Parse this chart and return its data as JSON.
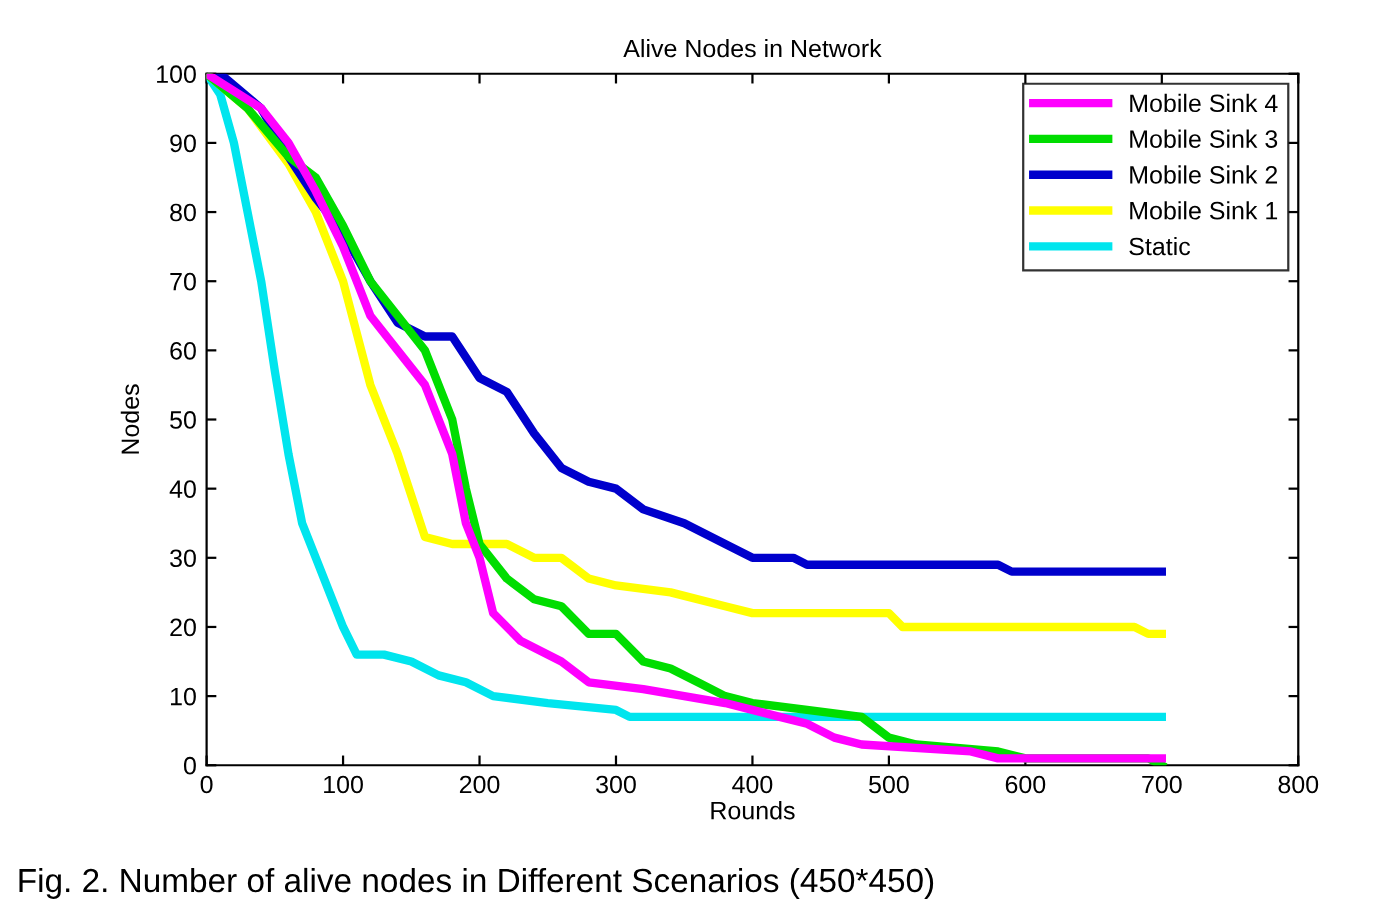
{
  "chart_data": {
    "type": "line",
    "title": "Alive Nodes in Network",
    "xlabel": "Rounds",
    "ylabel": "Nodes",
    "xlim": [
      0,
      800
    ],
    "xticks": [
      0,
      100,
      200,
      300,
      400,
      500,
      600,
      700,
      800
    ],
    "ylim": [
      0,
      100
    ],
    "yticks": [
      0,
      10,
      20,
      30,
      40,
      50,
      60,
      70,
      80,
      90,
      100
    ],
    "grid": false,
    "legend": "top right",
    "marker": "none",
    "line_style": "solid",
    "annotations": [
      "Fig. 2. Number of alive nodes in Different Scenarios (450*450)"
    ],
    "series": [
      {
        "name": "Mobile Sink 4",
        "color": "#ff00ff",
        "x": [
          0,
          40,
          60,
          80,
          100,
          120,
          140,
          160,
          180,
          190,
          200,
          210,
          230,
          260,
          280,
          320,
          350,
          380,
          420,
          440,
          460,
          480,
          560,
          580,
          700
        ],
        "values": [
          100,
          95,
          90,
          83,
          75,
          65,
          60,
          55,
          45,
          35,
          30,
          22,
          18,
          15,
          12,
          11,
          10,
          9,
          7,
          6,
          4,
          3,
          2,
          1,
          1
        ]
      },
      {
        "name": "Mobile Sink 3",
        "color": "#00dd00",
        "x": [
          0,
          30,
          60,
          80,
          100,
          120,
          140,
          160,
          180,
          190,
          200,
          220,
          240,
          260,
          280,
          300,
          320,
          340,
          360,
          380,
          400,
          440,
          480,
          500,
          520,
          580,
          600,
          690,
          700
        ],
        "values": [
          100,
          95,
          88,
          85,
          78,
          70,
          65,
          60,
          50,
          40,
          32,
          27,
          24,
          23,
          19,
          19,
          15,
          14,
          12,
          10,
          9,
          8,
          7,
          4,
          3,
          2,
          1,
          1,
          0
        ]
      },
      {
        "name": "Mobile Sink 2",
        "color": "#0000cc",
        "x": [
          10,
          40,
          60,
          80,
          100,
          120,
          140,
          160,
          180,
          200,
          220,
          240,
          260,
          280,
          300,
          320,
          350,
          380,
          400,
          430,
          440,
          580,
          590,
          700
        ],
        "values": [
          100,
          95,
          88,
          82,
          77,
          70,
          64,
          62,
          62,
          56,
          54,
          48,
          43,
          41,
          40,
          37,
          35,
          32,
          30,
          30,
          29,
          29,
          28,
          28
        ]
      },
      {
        "name": "Mobile Sink 1",
        "color": "#ffff00",
        "x": [
          0,
          30,
          60,
          80,
          100,
          120,
          140,
          160,
          180,
          220,
          240,
          260,
          280,
          300,
          340,
          380,
          400,
          500,
          510,
          680,
          690,
          700
        ],
        "values": [
          100,
          95,
          87,
          80,
          70,
          55,
          45,
          33,
          32,
          32,
          30,
          30,
          27,
          26,
          25,
          23,
          22,
          22,
          20,
          20,
          19,
          19
        ]
      },
      {
        "name": "Static",
        "color": "#00e5ee",
        "x": [
          0,
          10,
          20,
          30,
          40,
          50,
          60,
          70,
          80,
          90,
          100,
          110,
          130,
          150,
          170,
          190,
          210,
          250,
          300,
          310,
          700
        ],
        "values": [
          100,
          97,
          90,
          80,
          70,
          57,
          45,
          35,
          30,
          25,
          20,
          16,
          16,
          15,
          13,
          12,
          10,
          9,
          8,
          7,
          7
        ]
      }
    ]
  }
}
